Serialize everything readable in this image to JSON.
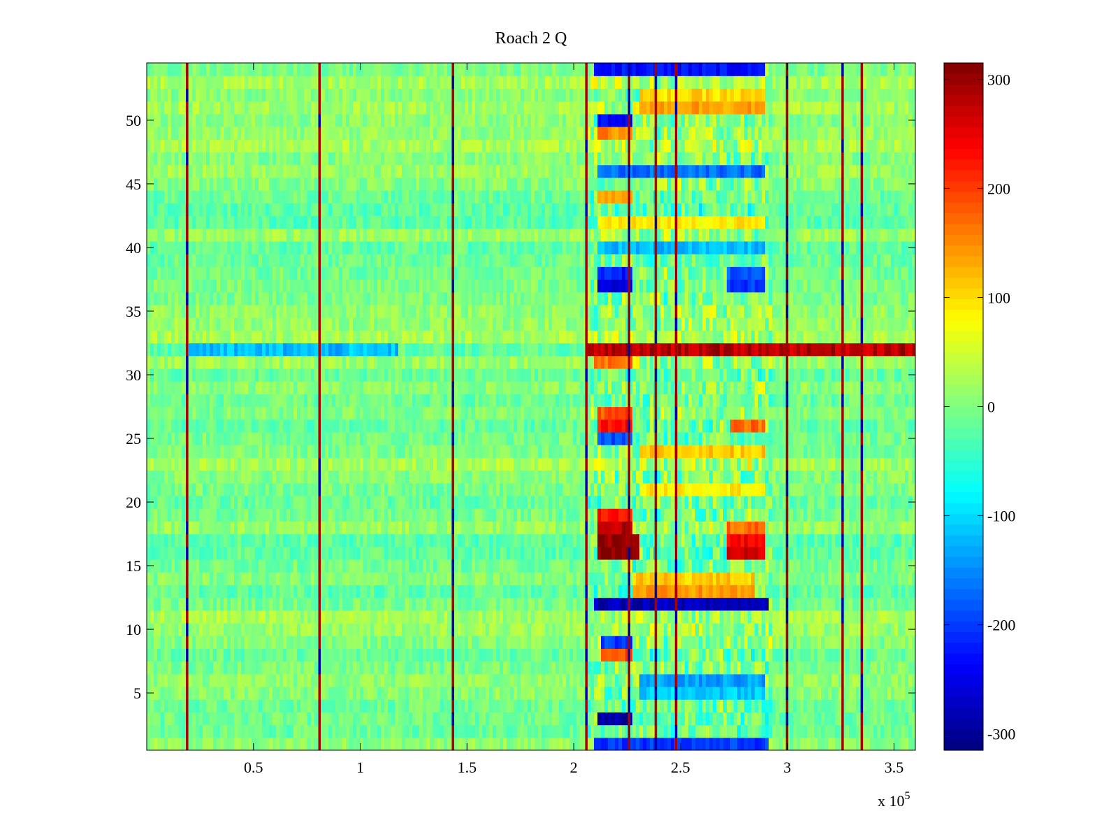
{
  "chart_data": {
    "type": "heatmap",
    "title": "Roach 2 Q",
    "xlabel": "",
    "ylabel": "",
    "x_range": [
      0,
      360000
    ],
    "y_range": [
      0.5,
      54.5
    ],
    "rows": 54,
    "x_ticks": [
      {
        "value": 50000,
        "label": "0.5"
      },
      {
        "value": 100000,
        "label": "1"
      },
      {
        "value": 150000,
        "label": "1.5"
      },
      {
        "value": 200000,
        "label": "2"
      },
      {
        "value": 250000,
        "label": "2.5"
      },
      {
        "value": 300000,
        "label": "3"
      },
      {
        "value": 350000,
        "label": "3.5"
      }
    ],
    "x_exponent_label": "x 10",
    "x_exponent_power": "5",
    "y_ticks": [
      {
        "value": 5,
        "label": "5"
      },
      {
        "value": 10,
        "label": "10"
      },
      {
        "value": 15,
        "label": "15"
      },
      {
        "value": 20,
        "label": "20"
      },
      {
        "value": 25,
        "label": "25"
      },
      {
        "value": 30,
        "label": "30"
      },
      {
        "value": 35,
        "label": "35"
      },
      {
        "value": 40,
        "label": "40"
      },
      {
        "value": 45,
        "label": "45"
      },
      {
        "value": 50,
        "label": "50"
      }
    ],
    "colorbar": {
      "colormap": "jet",
      "clim": [
        -315,
        315
      ],
      "ticks": [
        {
          "value": 300,
          "label": "300"
        },
        {
          "value": 200,
          "label": "200"
        },
        {
          "value": 100,
          "label": "100"
        },
        {
          "value": 0,
          "label": "0"
        },
        {
          "value": -100,
          "label": "-100"
        },
        {
          "value": -200,
          "label": "-200"
        },
        {
          "value": -300,
          "label": "-300"
        }
      ]
    },
    "background_level": 0,
    "vertical_stripes": [
      {
        "x": 19000
      },
      {
        "x": 81000
      },
      {
        "x": 143500
      },
      {
        "x": 206000
      },
      {
        "x": 226000
      },
      {
        "x": 238500
      },
      {
        "x": 248000
      },
      {
        "x": 300000
      },
      {
        "x": 326000
      },
      {
        "x": 335000
      }
    ],
    "active_region": {
      "x_start": 207000,
      "x_end": 293000
    },
    "horizontal_bands": [
      {
        "row": 32,
        "x_start": 207000,
        "x_end": 360000,
        "value": 280
      },
      {
        "row": 32,
        "x_start": 20000,
        "x_end": 118000,
        "value": -120
      }
    ],
    "blobs": [
      {
        "row": 16,
        "x_start": 211000,
        "x_end": 230000,
        "value": 310
      },
      {
        "row": 17,
        "x_start": 211000,
        "x_end": 230000,
        "value": 300
      },
      {
        "row": 16,
        "x_start": 272000,
        "x_end": 290000,
        "value": 260
      },
      {
        "row": 17,
        "x_start": 272000,
        "x_end": 290000,
        "value": 240
      },
      {
        "row": 18,
        "x_start": 211000,
        "x_end": 228000,
        "value": 280
      },
      {
        "row": 19,
        "x_start": 211000,
        "x_end": 228000,
        "value": 220
      },
      {
        "row": 18,
        "x_start": 272000,
        "x_end": 290000,
        "value": 170
      },
      {
        "row": 26,
        "x_start": 211000,
        "x_end": 228000,
        "value": 230
      },
      {
        "row": 27,
        "x_start": 211000,
        "x_end": 228000,
        "value": 190
      },
      {
        "row": 26,
        "x_start": 273000,
        "x_end": 289000,
        "value": 170
      },
      {
        "row": 12,
        "x_start": 209000,
        "x_end": 292000,
        "value": -280
      },
      {
        "row": 3,
        "x_start": 211000,
        "x_end": 228000,
        "value": -290
      },
      {
        "row": 1,
        "x_start": 210000,
        "x_end": 292000,
        "value": -200
      },
      {
        "row": 50,
        "x_start": 211000,
        "x_end": 228000,
        "value": -240
      },
      {
        "row": 49,
        "x_start": 211000,
        "x_end": 228000,
        "value": 150
      },
      {
        "row": 54,
        "x_start": 210000,
        "x_end": 290000,
        "value": -230
      },
      {
        "row": 37,
        "x_start": 211000,
        "x_end": 228000,
        "value": -250
      },
      {
        "row": 38,
        "x_start": 211000,
        "x_end": 228000,
        "value": -220
      },
      {
        "row": 37,
        "x_start": 272000,
        "x_end": 290000,
        "value": -200
      },
      {
        "row": 38,
        "x_start": 272000,
        "x_end": 290000,
        "value": -180
      },
      {
        "row": 13,
        "x_start": 228000,
        "x_end": 285000,
        "value": 140
      },
      {
        "row": 14,
        "x_start": 228000,
        "x_end": 285000,
        "value": 110
      },
      {
        "row": 8,
        "x_start": 212000,
        "x_end": 228000,
        "value": 190
      },
      {
        "row": 9,
        "x_start": 212000,
        "x_end": 228000,
        "value": -200
      },
      {
        "row": 51,
        "x_start": 230000,
        "x_end": 290000,
        "value": 140
      },
      {
        "row": 52,
        "x_start": 230000,
        "x_end": 290000,
        "value": 100
      },
      {
        "row": 46,
        "x_start": 211000,
        "x_end": 290000,
        "value": -170
      },
      {
        "row": 44,
        "x_start": 211000,
        "x_end": 228000,
        "value": 130
      },
      {
        "row": 42,
        "x_start": 211000,
        "x_end": 290000,
        "value": 90
      },
      {
        "row": 40,
        "x_start": 211000,
        "x_end": 290000,
        "value": -120
      },
      {
        "row": 31,
        "x_start": 209000,
        "x_end": 228000,
        "value": 160
      },
      {
        "row": 25,
        "x_start": 211000,
        "x_end": 228000,
        "value": -190
      },
      {
        "row": 24,
        "x_start": 230000,
        "x_end": 290000,
        "value": 110
      },
      {
        "row": 21,
        "x_start": 230000,
        "x_end": 290000,
        "value": 90
      },
      {
        "row": 6,
        "x_start": 230000,
        "x_end": 290000,
        "value": -140
      },
      {
        "row": 5,
        "x_start": 230000,
        "x_end": 290000,
        "value": -110
      }
    ]
  }
}
